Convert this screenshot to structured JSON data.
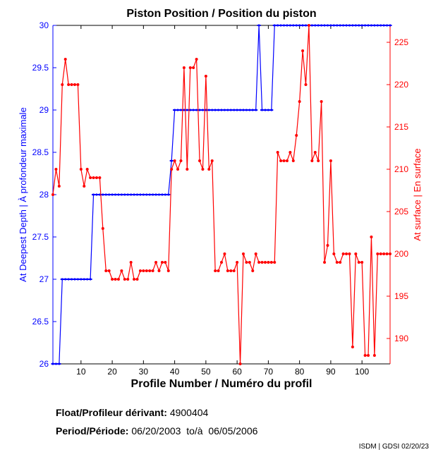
{
  "chart_data": {
    "type": "line",
    "title": "Piston Position / Position du piston",
    "xlabel": "Profile Number / Numéro du profil",
    "ylabel_left": "At Deepest Depth | À profondeur maximale",
    "ylabel_right": "At surface | En surface",
    "xlim": [
      1,
      109
    ],
    "ylim_left": [
      26,
      30
    ],
    "ylim_right": [
      187,
      227
    ],
    "xticks": [
      10,
      20,
      30,
      40,
      50,
      60,
      70,
      80,
      90,
      100
    ],
    "yticks_left": [
      "26",
      "26.5",
      "27",
      "27.5",
      "28",
      "28.5",
      "29",
      "29.5",
      "30"
    ],
    "yticks_right": [
      "190",
      "195",
      "200",
      "205",
      "210",
      "215",
      "220",
      "225"
    ],
    "grid": false,
    "series": [
      {
        "name": "At Deepest Depth",
        "axis": "left",
        "color": "#0000ff",
        "values": [
          26,
          26,
          26,
          27,
          27,
          27,
          27,
          27,
          27,
          27,
          27,
          27,
          27,
          28,
          28,
          28,
          28,
          28,
          28,
          28,
          28,
          28,
          28,
          28,
          28,
          28,
          28,
          28,
          28,
          28,
          28,
          28,
          28,
          28,
          28,
          28,
          28,
          28,
          28.4,
          29,
          29,
          29,
          29,
          29,
          29,
          29,
          29,
          29,
          29,
          29,
          29,
          29,
          29,
          29,
          29,
          29,
          29,
          29,
          29,
          29,
          29,
          29,
          29,
          29,
          29,
          29,
          30,
          29,
          29,
          29,
          29,
          30,
          30,
          30,
          30,
          30,
          30,
          30,
          30,
          30,
          30,
          30,
          30,
          30,
          30,
          30,
          30,
          30,
          30,
          30,
          30,
          30,
          30,
          30,
          30,
          30,
          30,
          30,
          30,
          30,
          30,
          30,
          30,
          30,
          30,
          30,
          30,
          30,
          30
        ]
      },
      {
        "name": "At surface",
        "axis": "right",
        "color": "#ff0000",
        "values": [
          207,
          210,
          208,
          220,
          223,
          220,
          220,
          220,
          220,
          210,
          208,
          210,
          209,
          209,
          209,
          209,
          203,
          198,
          198,
          197,
          197,
          197,
          198,
          197,
          197,
          199,
          197,
          197,
          198,
          198,
          198,
          198,
          198,
          199,
          198,
          199,
          199,
          198,
          210,
          211,
          210,
          211,
          222,
          210,
          222,
          222,
          223,
          211,
          210,
          221,
          210,
          211,
          198,
          198,
          199,
          200,
          198,
          198,
          198,
          199,
          187,
          200,
          199,
          199,
          198,
          200,
          199,
          199,
          199,
          199,
          199,
          199,
          212,
          211,
          211,
          211,
          212,
          211,
          214,
          218,
          224,
          220,
          227,
          211,
          212,
          211,
          218,
          199,
          201,
          211,
          200,
          199,
          199,
          200,
          200,
          200,
          189,
          200,
          199,
          199,
          188,
          188,
          202,
          188,
          200,
          200,
          200,
          200,
          200
        ]
      }
    ]
  },
  "info": {
    "float_label": "Float/Profileur dérivant:",
    "float_value": "4900404",
    "period_label": "Period/Période:",
    "period_value": "06/20/2003  to/à  06/05/2006",
    "credit": "ISDM | GDSI 02/20/23"
  }
}
